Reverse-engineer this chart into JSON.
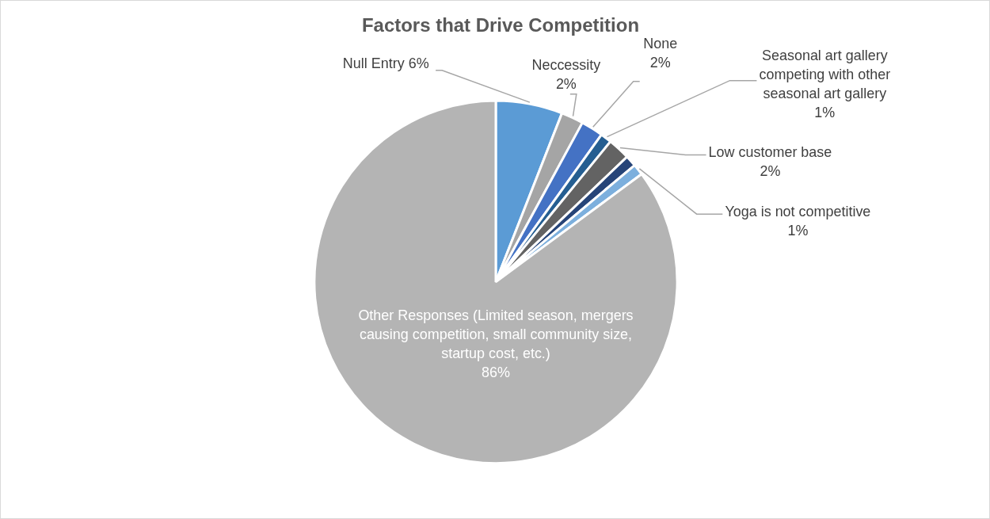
{
  "chart_data": {
    "type": "pie",
    "title": "Factors that Drive Competition",
    "categories": [
      "Null Entry",
      "Neccessity",
      "None",
      "Seasonal art gallery competing with other seasonal art gallery",
      "Low customer base",
      null,
      "Yoga is not competitive",
      "Other Responses (Limited season, mergers causing competition, small community size, startup cost, etc.)"
    ],
    "values": [
      6,
      2,
      2,
      1,
      2,
      1,
      1,
      86
    ],
    "value_labels": [
      "6%",
      "2%",
      "2%",
      "1%",
      "2%",
      null,
      "1%",
      "86%"
    ],
    "colors": [
      "#5b9bd5",
      "#a5a5a5",
      "#4472c4",
      "#255e91",
      "#636363",
      "#264478",
      "#7cafdd",
      "#b4b4b4"
    ],
    "legend": false
  }
}
